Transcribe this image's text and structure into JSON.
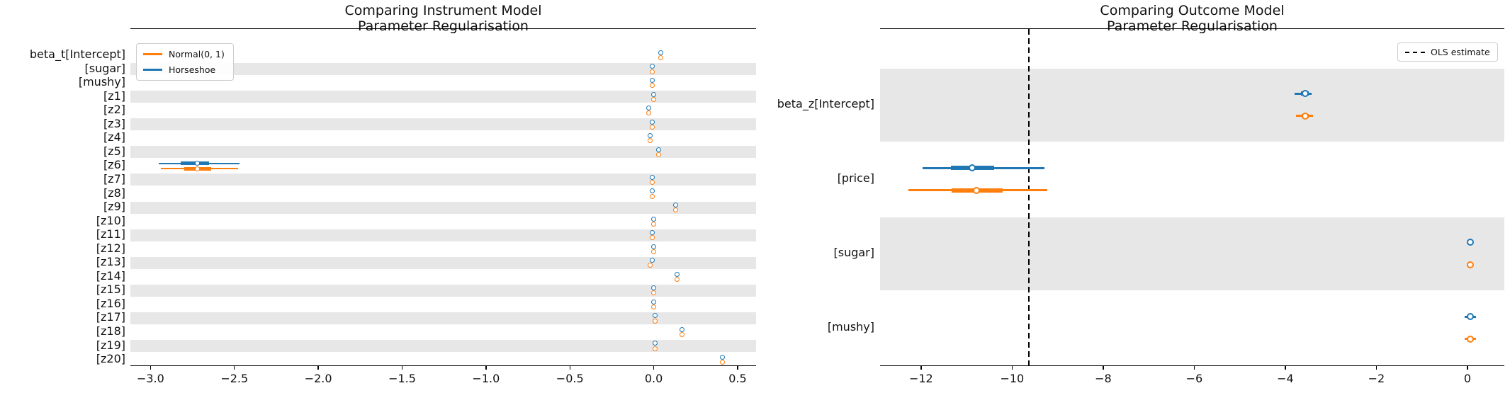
{
  "figure": {
    "background": "#ffffff"
  },
  "colors": {
    "normal": "#ff7f0e",
    "horseshoe": "#1f77b4",
    "band": "#e7e7e7",
    "ols_line": "#000000",
    "spine": "#000000"
  },
  "chart_data": [
    {
      "type": "forest",
      "title": "Comparing Instrument Model\nParameter Regularisation",
      "title_lines": [
        "Comparing Instrument Model",
        "Parameter Regularisation"
      ],
      "legend": [
        {
          "label": "Normal(0, 1)",
          "color_key": "normal"
        },
        {
          "label": "Horseshoe",
          "color_key": "horseshoe"
        }
      ],
      "legend_position": "upper-left",
      "xlim": [
        -3.12,
        0.61
      ],
      "xticks": [
        -3.0,
        -2.5,
        -2.0,
        -1.5,
        -1.0,
        -0.5,
        0.0,
        0.5
      ],
      "xtick_labels": [
        "−3.0",
        "−2.5",
        "−2.0",
        "−1.5",
        "−1.0",
        "−0.5",
        "0.0",
        "0.5"
      ],
      "grid": false,
      "shade_start_index": 1,
      "rows": [
        {
          "label": "beta_t[Intercept]",
          "series": [
            {
              "name": "Horseshoe",
              "color_key": "horseshoe",
              "value": 0.04
            },
            {
              "name": "Normal(0, 1)",
              "color_key": "normal",
              "value": 0.04
            }
          ]
        },
        {
          "label": "[sugar]",
          "series": [
            {
              "name": "Horseshoe",
              "color_key": "horseshoe",
              "value": -0.01
            },
            {
              "name": "Normal(0, 1)",
              "color_key": "normal",
              "value": -0.01
            }
          ]
        },
        {
          "label": "[mushy]",
          "series": [
            {
              "name": "Horseshoe",
              "color_key": "horseshoe",
              "value": -0.01
            },
            {
              "name": "Normal(0, 1)",
              "color_key": "normal",
              "value": -0.01
            }
          ]
        },
        {
          "label": "[z1]",
          "series": [
            {
              "name": "Horseshoe",
              "color_key": "horseshoe",
              "value": 0.0
            },
            {
              "name": "Normal(0, 1)",
              "color_key": "normal",
              "value": 0.0
            }
          ]
        },
        {
          "label": "[z2]",
          "series": [
            {
              "name": "Horseshoe",
              "color_key": "horseshoe",
              "value": -0.03
            },
            {
              "name": "Normal(0, 1)",
              "color_key": "normal",
              "value": -0.03
            }
          ]
        },
        {
          "label": "[z3]",
          "series": [
            {
              "name": "Horseshoe",
              "color_key": "horseshoe",
              "value": -0.01
            },
            {
              "name": "Normal(0, 1)",
              "color_key": "normal",
              "value": -0.01
            }
          ]
        },
        {
          "label": "[z4]",
          "series": [
            {
              "name": "Horseshoe",
              "color_key": "horseshoe",
              "value": -0.02
            },
            {
              "name": "Normal(0, 1)",
              "color_key": "normal",
              "value": -0.02
            }
          ]
        },
        {
          "label": "[z5]",
          "series": [
            {
              "name": "Horseshoe",
              "color_key": "horseshoe",
              "value": 0.03
            },
            {
              "name": "Normal(0, 1)",
              "color_key": "normal",
              "value": 0.03
            }
          ]
        },
        {
          "label": "[z6]",
          "series": [
            {
              "name": "Horseshoe",
              "color_key": "horseshoe",
              "value": -2.72,
              "hdi": [
                -2.95,
                -2.47
              ],
              "iqr": [
                -2.82,
                -2.65
              ]
            },
            {
              "name": "Normal(0, 1)",
              "color_key": "normal",
              "value": -2.72,
              "hdi": [
                -2.94,
                -2.48
              ],
              "iqr": [
                -2.8,
                -2.64
              ]
            }
          ]
        },
        {
          "label": "[z7]",
          "series": [
            {
              "name": "Horseshoe",
              "color_key": "horseshoe",
              "value": -0.01
            },
            {
              "name": "Normal(0, 1)",
              "color_key": "normal",
              "value": -0.01
            }
          ]
        },
        {
          "label": "[z8]",
          "series": [
            {
              "name": "Horseshoe",
              "color_key": "horseshoe",
              "value": -0.01
            },
            {
              "name": "Normal(0, 1)",
              "color_key": "normal",
              "value": -0.01
            }
          ]
        },
        {
          "label": "[z9]",
          "series": [
            {
              "name": "Horseshoe",
              "color_key": "horseshoe",
              "value": 0.13
            },
            {
              "name": "Normal(0, 1)",
              "color_key": "normal",
              "value": 0.13
            }
          ]
        },
        {
          "label": "[z10]",
          "series": [
            {
              "name": "Horseshoe",
              "color_key": "horseshoe",
              "value": 0.0
            },
            {
              "name": "Normal(0, 1)",
              "color_key": "normal",
              "value": 0.0
            }
          ]
        },
        {
          "label": "[z11]",
          "series": [
            {
              "name": "Horseshoe",
              "color_key": "horseshoe",
              "value": -0.01
            },
            {
              "name": "Normal(0, 1)",
              "color_key": "normal",
              "value": -0.01
            }
          ]
        },
        {
          "label": "[z12]",
          "series": [
            {
              "name": "Horseshoe",
              "color_key": "horseshoe",
              "value": 0.0
            },
            {
              "name": "Normal(0, 1)",
              "color_key": "normal",
              "value": 0.0
            }
          ]
        },
        {
          "label": "[z13]",
          "series": [
            {
              "name": "Horseshoe",
              "color_key": "horseshoe",
              "value": -0.01
            },
            {
              "name": "Normal(0, 1)",
              "color_key": "normal",
              "value": -0.02
            }
          ]
        },
        {
          "label": "[z14]",
          "series": [
            {
              "name": "Horseshoe",
              "color_key": "horseshoe",
              "value": 0.14
            },
            {
              "name": "Normal(0, 1)",
              "color_key": "normal",
              "value": 0.14
            }
          ]
        },
        {
          "label": "[z15]",
          "series": [
            {
              "name": "Horseshoe",
              "color_key": "horseshoe",
              "value": 0.0
            },
            {
              "name": "Normal(0, 1)",
              "color_key": "normal",
              "value": 0.0
            }
          ]
        },
        {
          "label": "[z16]",
          "series": [
            {
              "name": "Horseshoe",
              "color_key": "horseshoe",
              "value": 0.0
            },
            {
              "name": "Normal(0, 1)",
              "color_key": "normal",
              "value": 0.0
            }
          ]
        },
        {
          "label": "[z17]",
          "series": [
            {
              "name": "Horseshoe",
              "color_key": "horseshoe",
              "value": 0.01
            },
            {
              "name": "Normal(0, 1)",
              "color_key": "normal",
              "value": 0.01
            }
          ]
        },
        {
          "label": "[z18]",
          "series": [
            {
              "name": "Horseshoe",
              "color_key": "horseshoe",
              "value": 0.17
            },
            {
              "name": "Normal(0, 1)",
              "color_key": "normal",
              "value": 0.17
            }
          ]
        },
        {
          "label": "[z19]",
          "series": [
            {
              "name": "Horseshoe",
              "color_key": "horseshoe",
              "value": 0.01
            },
            {
              "name": "Normal(0, 1)",
              "color_key": "normal",
              "value": 0.01
            }
          ]
        },
        {
          "label": "[z20]",
          "series": [
            {
              "name": "Horseshoe",
              "color_key": "horseshoe",
              "value": 0.41
            },
            {
              "name": "Normal(0, 1)",
              "color_key": "normal",
              "value": 0.41
            }
          ]
        }
      ]
    },
    {
      "type": "forest",
      "title": "Comparing Outcome Model\nParameter Regularisation",
      "title_lines": [
        "Comparing Outcome Model",
        "Parameter Regularisation"
      ],
      "legend": [
        {
          "label": "OLS estimate",
          "style": "dashed-black-line"
        }
      ],
      "legend_position": "upper-right",
      "xlim": [
        -12.9,
        0.81
      ],
      "xticks": [
        -12,
        -10,
        -8,
        -6,
        -4,
        -2,
        0
      ],
      "xtick_labels": [
        "−12",
        "−10",
        "−8",
        "−6",
        "−4",
        "−2",
        "0"
      ],
      "grid": false,
      "shade_start_index": 0,
      "ols_estimate": -9.63,
      "rows": [
        {
          "label": "beta_z[Intercept]",
          "series": [
            {
              "name": "Horseshoe",
              "color_key": "horseshoe",
              "value": -3.57,
              "hdi": [
                -3.79,
                -3.42
              ],
              "iqr": [
                -3.66,
                -3.49
              ]
            },
            {
              "name": "Normal(0, 1)",
              "color_key": "normal",
              "value": -3.56,
              "hdi": [
                -3.76,
                -3.39
              ],
              "iqr": [
                -3.64,
                -3.48
              ]
            }
          ]
        },
        {
          "label": "[price]",
          "series": [
            {
              "name": "Horseshoe",
              "color_key": "horseshoe",
              "value": -10.88,
              "hdi": [
                -11.97,
                -9.29
              ],
              "iqr": [
                -11.35,
                -10.39
              ]
            },
            {
              "name": "Normal(0, 1)",
              "color_key": "normal",
              "value": -10.78,
              "hdi": [
                -12.28,
                -9.22
              ],
              "iqr": [
                -11.33,
                -10.21
              ]
            }
          ]
        },
        {
          "label": "[sugar]",
          "series": [
            {
              "name": "Horseshoe",
              "color_key": "horseshoe",
              "value": 0.06
            },
            {
              "name": "Normal(0, 1)",
              "color_key": "normal",
              "value": 0.06
            }
          ]
        },
        {
          "label": "[mushy]",
          "series": [
            {
              "name": "Horseshoe",
              "color_key": "horseshoe",
              "value": 0.06,
              "hdi": [
                -0.06,
                0.19
              ]
            },
            {
              "name": "Normal(0, 1)",
              "color_key": "normal",
              "value": 0.06,
              "hdi": [
                -0.06,
                0.19
              ]
            }
          ]
        }
      ]
    }
  ]
}
